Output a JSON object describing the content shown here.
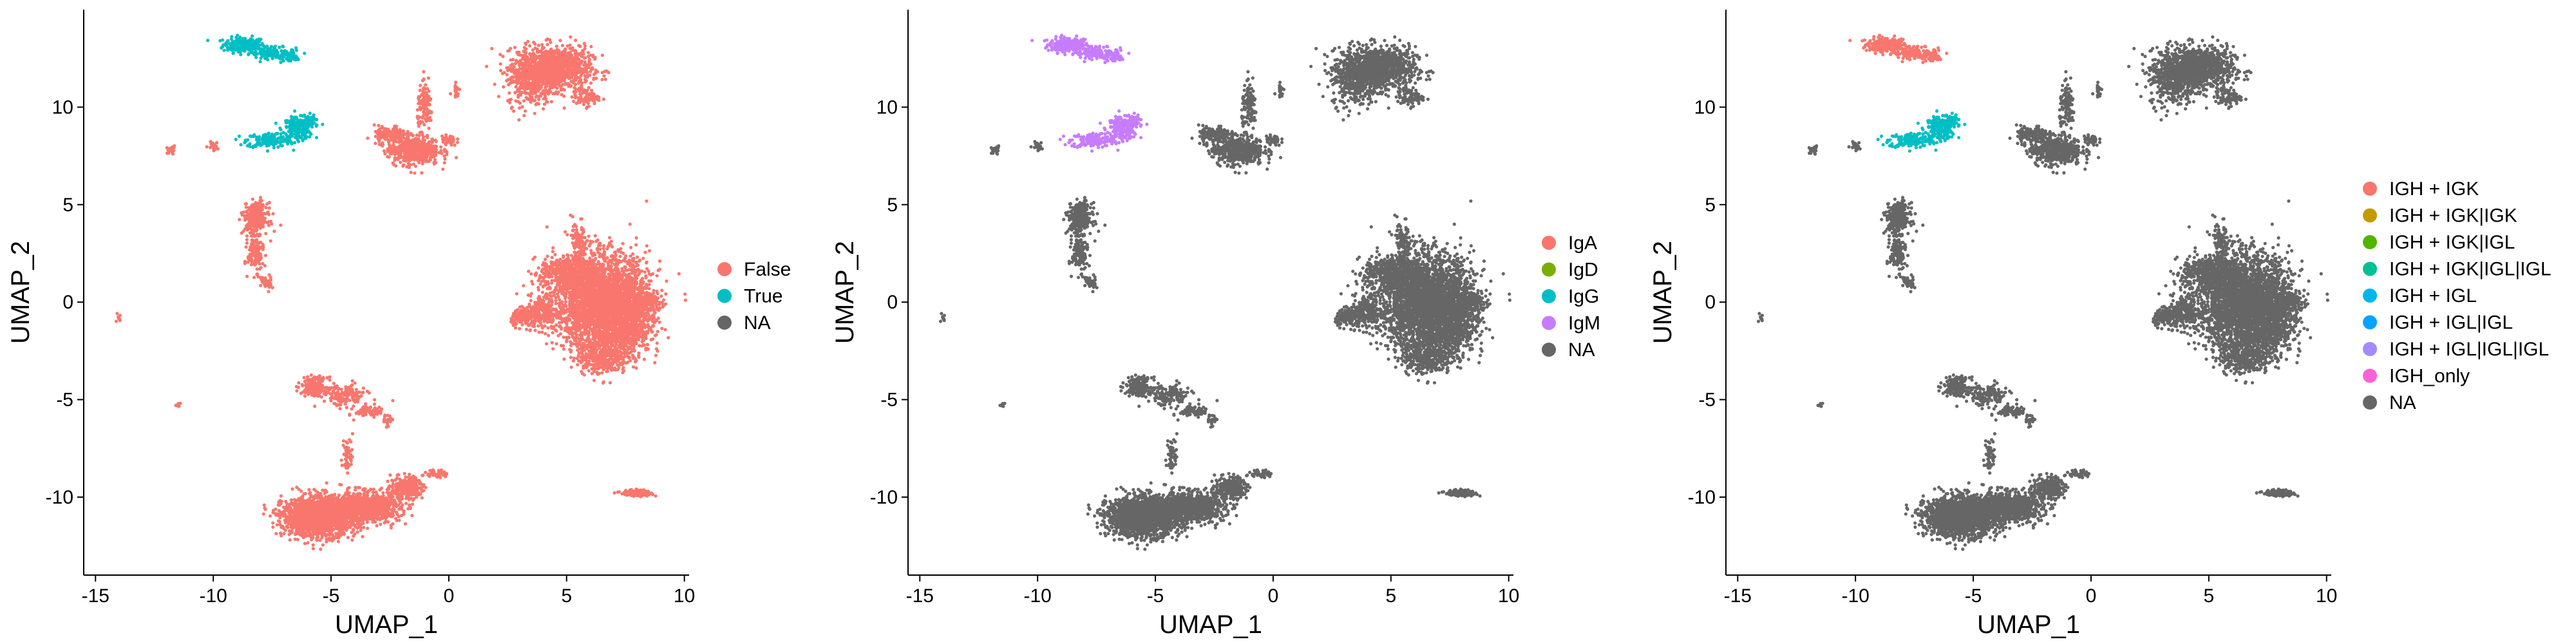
{
  "chart_data": [
    {
      "type": "scatter",
      "title": "",
      "xlabel": "UMAP_1",
      "ylabel": "UMAP_2",
      "xlim": [
        -15.5,
        10.2
      ],
      "ylim": [
        -14,
        15
      ],
      "xticks": [
        "-15",
        "-10",
        "-5",
        "0",
        "5",
        "10"
      ],
      "xtick_values": [
        -15,
        -10,
        -5,
        0,
        5,
        10
      ],
      "yticks": [
        "-10",
        "-5",
        "0",
        "5",
        "10"
      ],
      "ytick_values": [
        -10,
        -5,
        0,
        5,
        10
      ],
      "grid": false,
      "legend_position": "right",
      "legend": [
        {
          "label": "False",
          "color": "#F8766D"
        },
        {
          "label": "True",
          "color": "#00BFC4"
        },
        {
          "label": "NA",
          "color": "#666666"
        }
      ],
      "base_color": "#F8766D",
      "highlight": [
        {
          "cluster": "plasma_top",
          "color": "#00BFC4"
        },
        {
          "cluster": "plasma_mid",
          "color": "#00BFC4"
        }
      ]
    },
    {
      "type": "scatter",
      "title": "",
      "xlabel": "UMAP_1",
      "ylabel": "UMAP_2",
      "xlim": [
        -15.5,
        10.2
      ],
      "ylim": [
        -14,
        15
      ],
      "xticks": [
        "-15",
        "-10",
        "-5",
        "0",
        "5",
        "10"
      ],
      "xtick_values": [
        -15,
        -10,
        -5,
        0,
        5,
        10
      ],
      "yticks": [
        "-10",
        "-5",
        "0",
        "5",
        "10"
      ],
      "ytick_values": [
        -10,
        -5,
        0,
        5,
        10
      ],
      "grid": false,
      "legend_position": "right",
      "legend": [
        {
          "label": "IgA",
          "color": "#F8766D"
        },
        {
          "label": "IgD",
          "color": "#7CAE00"
        },
        {
          "label": "IgG",
          "color": "#00BFC4"
        },
        {
          "label": "IgM",
          "color": "#C77CFF"
        },
        {
          "label": "NA",
          "color": "#666666"
        }
      ],
      "base_color": "#666666",
      "highlight": [
        {
          "cluster": "plasma_top",
          "color": "#C77CFF"
        },
        {
          "cluster": "plasma_mid",
          "color": "#C77CFF"
        }
      ]
    },
    {
      "type": "scatter",
      "title": "",
      "xlabel": "UMAP_1",
      "ylabel": "UMAP_2",
      "xlim": [
        -15.5,
        10.2
      ],
      "ylim": [
        -14,
        15
      ],
      "xticks": [
        "-15",
        "-10",
        "-5",
        "0",
        "5",
        "10"
      ],
      "xtick_values": [
        -15,
        -10,
        -5,
        0,
        5,
        10
      ],
      "yticks": [
        "-10",
        "-5",
        "0",
        "5",
        "10"
      ],
      "ytick_values": [
        -10,
        -5,
        0,
        5,
        10
      ],
      "grid": false,
      "legend_position": "right",
      "legend": [
        {
          "label": "IGH + IGK",
          "color": "#F8766D"
        },
        {
          "label": "IGH + IGK|IGK",
          "color": "#C49A00"
        },
        {
          "label": "IGH + IGK|IGL",
          "color": "#53B400"
        },
        {
          "label": "IGH + IGK|IGL|IGL",
          "color": "#00C094"
        },
        {
          "label": "IGH + IGL",
          "color": "#00B6EB"
        },
        {
          "label": "IGH + IGL|IGL",
          "color": "#06A4FF"
        },
        {
          "label": "IGH + IGL|IGL|IGL",
          "color": "#A58AFF"
        },
        {
          "label": "IGH_only",
          "color": "#FB61D7"
        },
        {
          "label": "NA",
          "color": "#666666"
        }
      ],
      "base_color": "#666666",
      "highlight": [
        {
          "cluster": "plasma_top",
          "color": "#F8766D"
        },
        {
          "cluster": "plasma_mid",
          "color": "#00BFC4"
        }
      ]
    }
  ]
}
